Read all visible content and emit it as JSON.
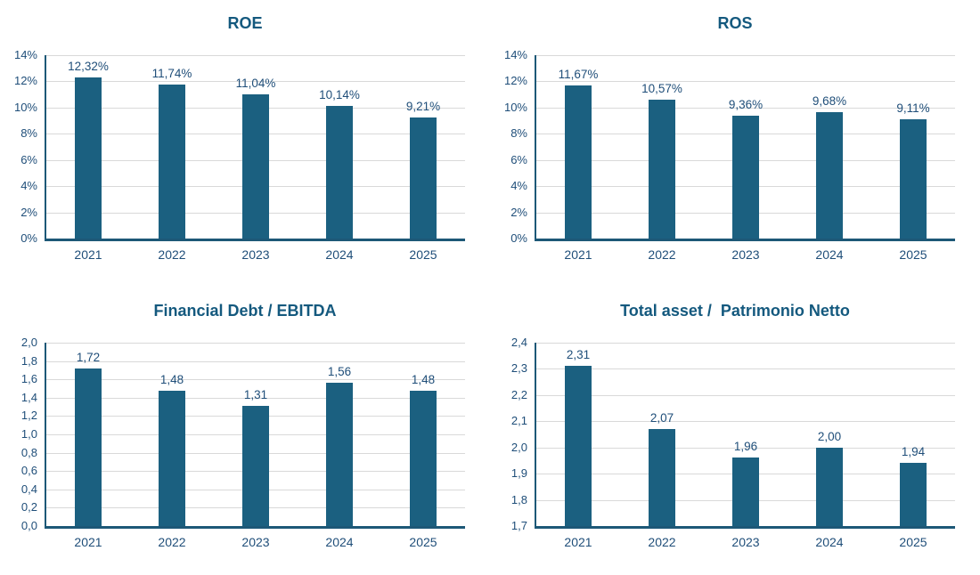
{
  "styles": {
    "bar_color": "#1B6080",
    "axis_color": "#1D5877",
    "grid_color": "#D9D9D9",
    "title_color": "#14597E",
    "label_color": "#1F4E79",
    "background": "#FFFFFF"
  },
  "chart_data": [
    {
      "id": "roe",
      "type": "bar",
      "title": "ROE",
      "categories": [
        "2021",
        "2022",
        "2023",
        "2024",
        "2025"
      ],
      "values": [
        12.32,
        11.74,
        11.04,
        10.14,
        9.21
      ],
      "data_labels": [
        "12,32%",
        "11,74%",
        "11,04%",
        "10,14%",
        "9,21%"
      ],
      "ymin": 0,
      "ymax": 14,
      "ystep": 2,
      "tick_labels": [
        "14%",
        "12%",
        "10%",
        "8%",
        "6%",
        "4%",
        "2%",
        "0%"
      ],
      "xlabel": "",
      "ylabel": "",
      "grid": true,
      "legend": false
    },
    {
      "id": "ros",
      "type": "bar",
      "title": "ROS",
      "categories": [
        "2021",
        "2022",
        "2023",
        "2024",
        "2025"
      ],
      "values": [
        11.67,
        10.57,
        9.36,
        9.68,
        9.11
      ],
      "data_labels": [
        "11,67%",
        "10,57%",
        "9,36%",
        "9,68%",
        "9,11%"
      ],
      "ymin": 0,
      "ymax": 14,
      "ystep": 2,
      "tick_labels": [
        "14%",
        "12%",
        "10%",
        "8%",
        "6%",
        "4%",
        "2%",
        "0%"
      ],
      "xlabel": "",
      "ylabel": "",
      "grid": true,
      "legend": false
    },
    {
      "id": "financial-debt-ebitda",
      "type": "bar",
      "title": "Financial Debt / EBITDA",
      "categories": [
        "2021",
        "2022",
        "2023",
        "2024",
        "2025"
      ],
      "values": [
        1.72,
        1.48,
        1.31,
        1.56,
        1.48
      ],
      "data_labels": [
        "1,72",
        "1,48",
        "1,31",
        "1,56",
        "1,48"
      ],
      "ymin": 0,
      "ymax": 2,
      "ystep": 0.2,
      "tick_labels": [
        "2,0",
        "1,8",
        "1,6",
        "1,4",
        "1,2",
        "1,0",
        "0,8",
        "0,6",
        "0,4",
        "0,2",
        "0,0"
      ],
      "xlabel": "",
      "ylabel": "",
      "grid": true,
      "legend": false
    },
    {
      "id": "total-asset-patrimonio-netto",
      "type": "bar",
      "title": "Total asset /  Patrimonio Netto",
      "categories": [
        "2021",
        "2022",
        "2023",
        "2024",
        "2025"
      ],
      "values": [
        2.31,
        2.07,
        1.96,
        2.0,
        1.94
      ],
      "data_labels": [
        "2,31",
        "2,07",
        "1,96",
        "2,00",
        "1,94"
      ],
      "ymin": 1.7,
      "ymax": 2.4,
      "ystep": 0.1,
      "tick_labels": [
        "2,4",
        "2,3",
        "2,2",
        "2,1",
        "2,0",
        "1,9",
        "1,8",
        "1,7"
      ],
      "xlabel": "",
      "ylabel": "",
      "grid": true,
      "legend": false
    }
  ]
}
